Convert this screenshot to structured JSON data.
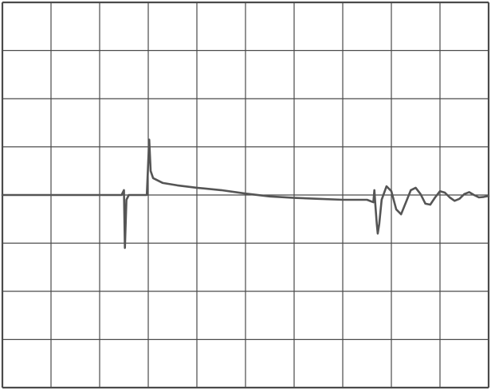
{
  "chart_data": {
    "type": "line",
    "title": "",
    "xlabel": "",
    "ylabel": "",
    "xlim": [
      0,
      10
    ],
    "ylim": [
      -4,
      4
    ],
    "grid": true,
    "divisions": {
      "x": 10,
      "y": 8
    },
    "colors": {
      "trace": "#555555",
      "grid": "#4a4a4a",
      "background": "#ffffff"
    },
    "series": [
      {
        "x": [
          0,
          1.0,
          2.0,
          2.45,
          2.5,
          2.52,
          2.55,
          2.6,
          2.8,
          2.97,
          3.0,
          3.02,
          3.05,
          3.1,
          3.3,
          3.6,
          4.0,
          4.5,
          5.0,
          5.5,
          6.0,
          6.5,
          7.0,
          7.5,
          7.63,
          7.65,
          7.67,
          7.7,
          7.72,
          7.75,
          7.8,
          7.9,
          8.0,
          8.1,
          8.2,
          8.3,
          8.4,
          8.5,
          8.6,
          8.7,
          8.8,
          8.9,
          9.0,
          9.1,
          9.2,
          9.3,
          9.4,
          9.5,
          9.6,
          9.7,
          9.8,
          9.9,
          10.0
        ],
        "y": [
          0.0,
          0.0,
          0.0,
          0.0,
          0.1,
          -1.1,
          -0.1,
          0.0,
          0.0,
          0.0,
          0.7,
          1.15,
          0.5,
          0.35,
          0.25,
          0.2,
          0.15,
          0.1,
          0.03,
          -0.03,
          -0.06,
          -0.08,
          -0.1,
          -0.1,
          -0.15,
          0.1,
          -0.2,
          -0.6,
          -0.8,
          -0.6,
          -0.1,
          0.18,
          0.08,
          -0.3,
          -0.4,
          -0.15,
          0.1,
          0.15,
          0.02,
          -0.18,
          -0.2,
          -0.05,
          0.08,
          0.05,
          -0.05,
          -0.12,
          -0.08,
          0.02,
          0.06,
          0.0,
          -0.05,
          -0.04,
          -0.02
        ]
      }
    ]
  }
}
